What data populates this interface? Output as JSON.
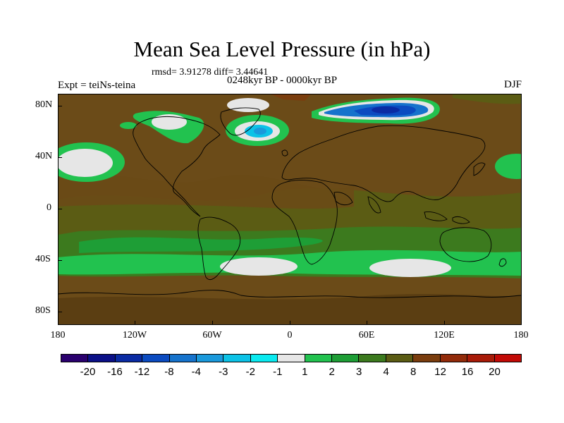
{
  "title": "Mean Sea Level Pressure (in hPa)",
  "stats": "rmsd= 3.91278 diff= 3.44641",
  "period": "0248kyr BP - 0000kyr BP",
  "experiment": "Expt = teiNs-teina",
  "season": "DJF",
  "lat_labels": [
    "80N",
    "40N",
    "0",
    "40S",
    "80S"
  ],
  "lon_labels": [
    "180",
    "120W",
    "60W",
    "0",
    "60E",
    "120E",
    "180"
  ],
  "colorbar": {
    "labels": [
      "-20",
      "-16",
      "-12",
      "-8",
      "-4",
      "-3",
      "-2",
      "-1",
      "1",
      "2",
      "3",
      "4",
      "8",
      "12",
      "16",
      "20"
    ],
    "colors": [
      "#2a006e",
      "#0b1087",
      "#0a2ba3",
      "#0b4bc0",
      "#1673cc",
      "#1a99db",
      "#0cc2e6",
      "#0aeaf0",
      "#e6e6e6",
      "#22c24f",
      "#1e9e36",
      "#3c7a1e",
      "#5b5c14",
      "#7a3d0e",
      "#922b0a",
      "#a81b08",
      "#c20a06"
    ]
  },
  "palette": {
    "ocean_background": "#6b4b18",
    "coast": "#000000"
  }
}
